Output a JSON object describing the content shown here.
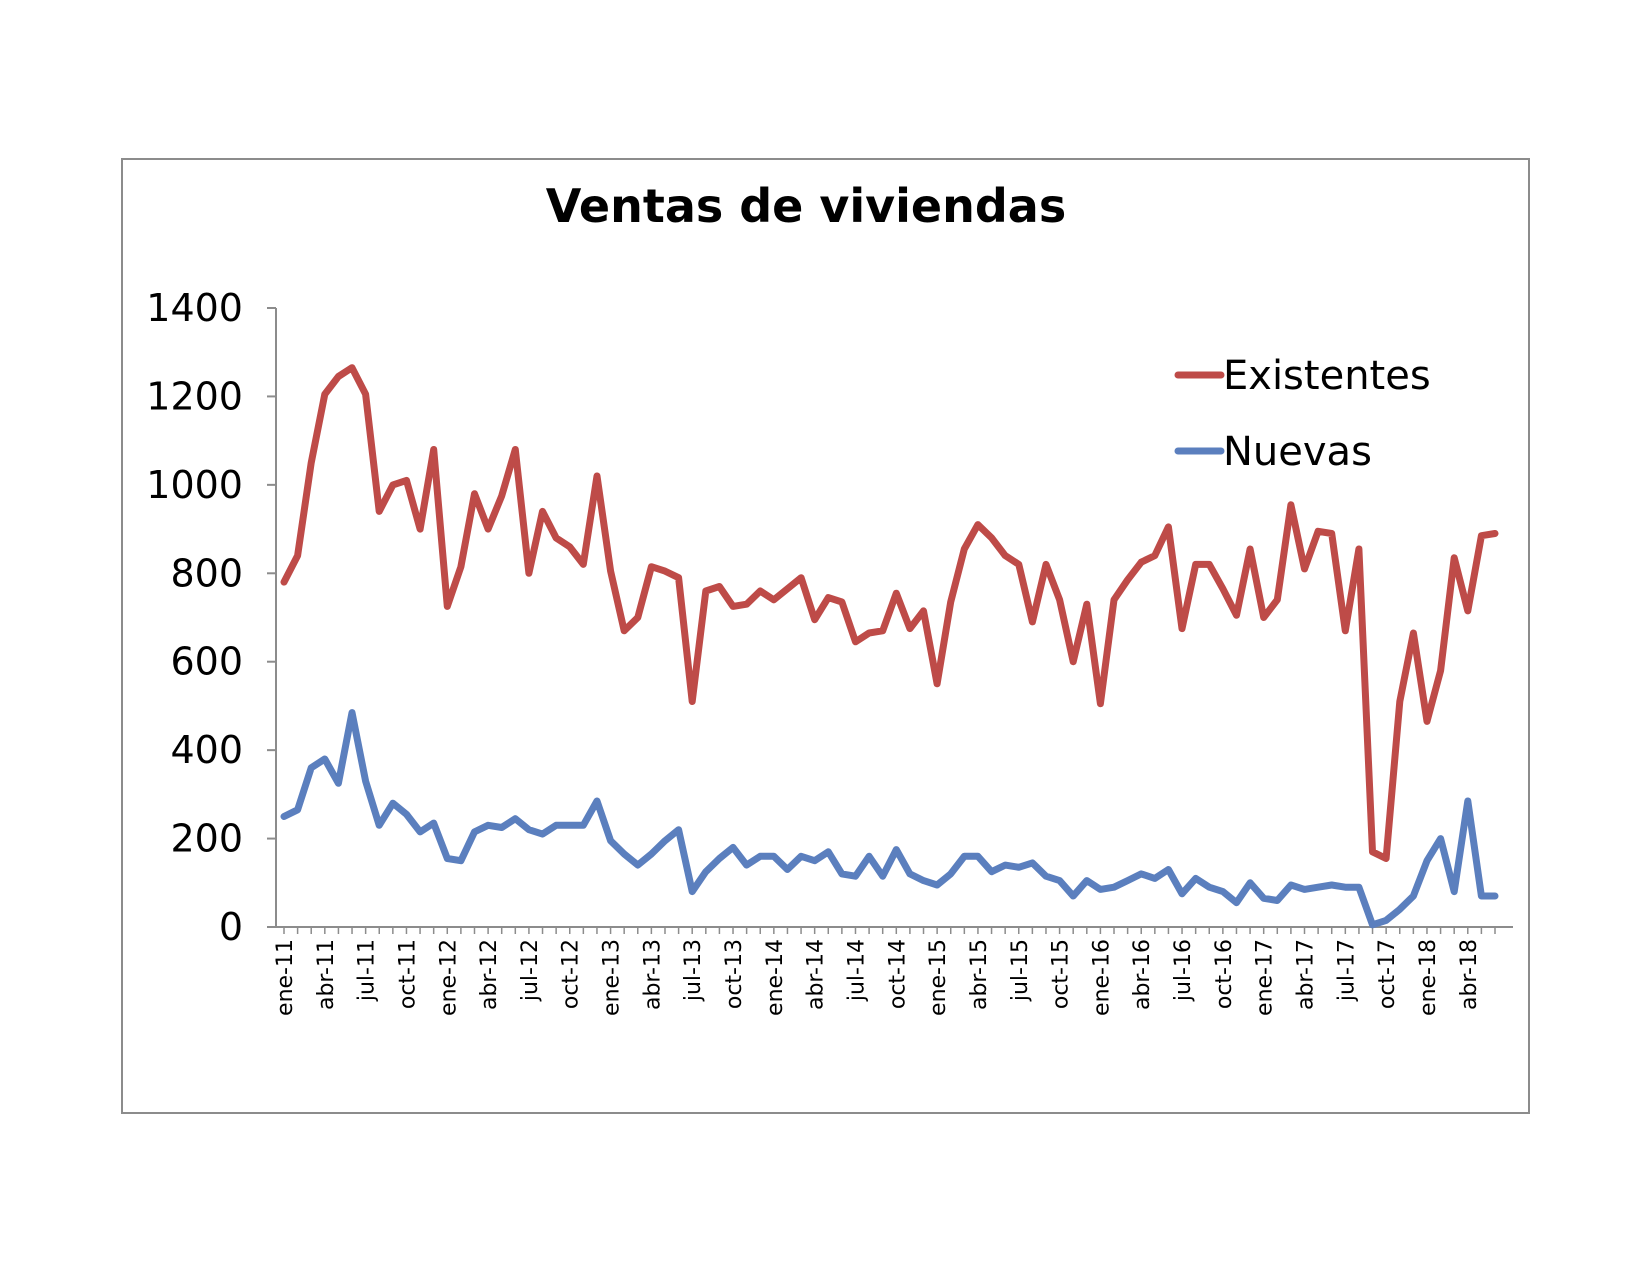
{
  "chart_data": {
    "type": "line",
    "title": "Ventas de viviendas",
    "xlabel": "",
    "ylabel": "",
    "ylim": [
      0,
      1400
    ],
    "yticks": [
      0,
      200,
      400,
      600,
      800,
      1000,
      1200,
      1400
    ],
    "grid": false,
    "legend_position": "top-right",
    "x": [
      "ene-11",
      "feb-11",
      "mar-11",
      "abr-11",
      "may-11",
      "jun-11",
      "jul-11",
      "ago-11",
      "sep-11",
      "oct-11",
      "nov-11",
      "dic-11",
      "ene-12",
      "feb-12",
      "mar-12",
      "abr-12",
      "may-12",
      "jun-12",
      "jul-12",
      "ago-12",
      "sep-12",
      "oct-12",
      "nov-12",
      "dic-12",
      "ene-13",
      "feb-13",
      "mar-13",
      "abr-13",
      "may-13",
      "jun-13",
      "jul-13",
      "ago-13",
      "sep-13",
      "oct-13",
      "nov-13",
      "dic-13",
      "ene-14",
      "feb-14",
      "mar-14",
      "abr-14",
      "may-14",
      "jun-14",
      "jul-14",
      "ago-14",
      "sep-14",
      "oct-14",
      "nov-14",
      "dic-14",
      "ene-15",
      "feb-15",
      "mar-15",
      "abr-15",
      "may-15",
      "jun-15",
      "jul-15",
      "ago-15",
      "sep-15",
      "oct-15",
      "nov-15",
      "dic-15",
      "ene-16",
      "feb-16",
      "mar-16",
      "abr-16",
      "may-16",
      "jun-16",
      "jul-16",
      "ago-16",
      "sep-16",
      "oct-16",
      "nov-16",
      "dic-16",
      "ene-17",
      "feb-17",
      "mar-17",
      "abr-17",
      "may-17",
      "jun-17",
      "jul-17",
      "ago-17",
      "sep-17",
      "oct-17",
      "nov-17",
      "dic-17",
      "ene-18",
      "feb-18",
      "mar-18",
      "abr-18",
      "may-18",
      "jun-18"
    ],
    "tick_labels": [
      "ene-11",
      "abr-11",
      "jul-11",
      "oct-11",
      "ene-12",
      "abr-12",
      "jul-12",
      "oct-12",
      "ene-13",
      "abr-13",
      "jul-13",
      "oct-13",
      "ene-14",
      "abr-14",
      "jul-14",
      "oct-14",
      "ene-15",
      "abr-15",
      "jul-15",
      "oct-15",
      "ene-16",
      "abr-16",
      "jul-16",
      "oct-16",
      "ene-17",
      "abr-17",
      "jul-17",
      "oct-17",
      "ene-18",
      "abr-18"
    ],
    "series": [
      {
        "name": "Existentes",
        "color": "#be4b48",
        "values": [
          780,
          840,
          1050,
          1205,
          1245,
          1265,
          1205,
          940,
          1000,
          1010,
          900,
          1080,
          725,
          815,
          980,
          900,
          975,
          1080,
          800,
          940,
          880,
          860,
          820,
          1020,
          805,
          670,
          700,
          815,
          805,
          790,
          510,
          760,
          770,
          725,
          730,
          760,
          740,
          765,
          790,
          695,
          745,
          735,
          645,
          665,
          670,
          755,
          675,
          715,
          550,
          735,
          855,
          910,
          880,
          840,
          820,
          690,
          820,
          740,
          600,
          730,
          505,
          740,
          785,
          825,
          840,
          905,
          675,
          820,
          820,
          765,
          705,
          855,
          700,
          740,
          955,
          810,
          895,
          890,
          670,
          855,
          170,
          155,
          510,
          665,
          465,
          580,
          835,
          715,
          885,
          890
        ]
      },
      {
        "name": "Nuevas",
        "color": "#5b7fbe",
        "values": [
          250,
          265,
          360,
          380,
          325,
          485,
          330,
          230,
          280,
          255,
          215,
          235,
          155,
          150,
          215,
          230,
          225,
          245,
          220,
          210,
          230,
          230,
          230,
          285,
          195,
          165,
          140,
          165,
          195,
          220,
          80,
          125,
          155,
          180,
          140,
          160,
          160,
          130,
          160,
          150,
          170,
          120,
          115,
          160,
          115,
          175,
          120,
          105,
          95,
          120,
          160,
          160,
          125,
          140,
          135,
          145,
          115,
          105,
          70,
          105,
          85,
          90,
          105,
          120,
          110,
          130,
          75,
          110,
          90,
          80,
          55,
          100,
          65,
          60,
          95,
          85,
          90,
          95,
          90,
          90,
          5,
          15,
          40,
          70,
          150,
          200,
          80,
          285,
          70,
          70
        ]
      }
    ]
  }
}
